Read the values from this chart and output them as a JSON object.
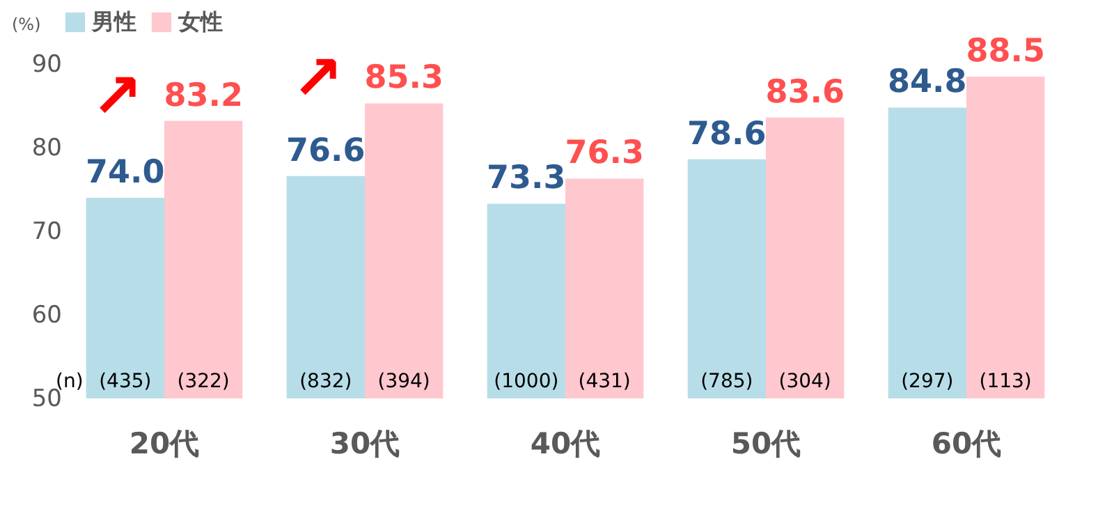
{
  "chart_data": {
    "type": "bar",
    "ylabel": "(%)",
    "categories": [
      "20代",
      "30代",
      "40代",
      "50代",
      "60代"
    ],
    "series": [
      {
        "name": "男性",
        "color": "#b7dde8",
        "values": [
          74.0,
          76.6,
          73.3,
          78.6,
          84.8
        ],
        "value_labels": [
          "74.0",
          "76.6",
          "73.3",
          "78.6",
          "84.8"
        ]
      },
      {
        "name": "女性",
        "color": "#ffc7ce",
        "values": [
          83.2,
          85.3,
          76.3,
          83.6,
          88.5
        ],
        "value_labels": [
          "83.2",
          "85.3",
          "76.3",
          "83.6",
          "88.5"
        ]
      }
    ],
    "ylim": [
      50,
      90
    ],
    "yticks": [
      50,
      60,
      70,
      80,
      90
    ],
    "grid": false,
    "legend": "top",
    "annotations": [
      "(n)",
      "(435)",
      "(322)",
      "(832)",
      "(394)",
      "(1000)",
      "(431)",
      "(785)",
      "(304)",
      "(297)",
      "(113)",
      {
        "text": "↗",
        "x": "20代",
        "y": 83.2
      },
      {
        "text": "↗",
        "x": "30代",
        "y": 85.3
      }
    ]
  }
}
